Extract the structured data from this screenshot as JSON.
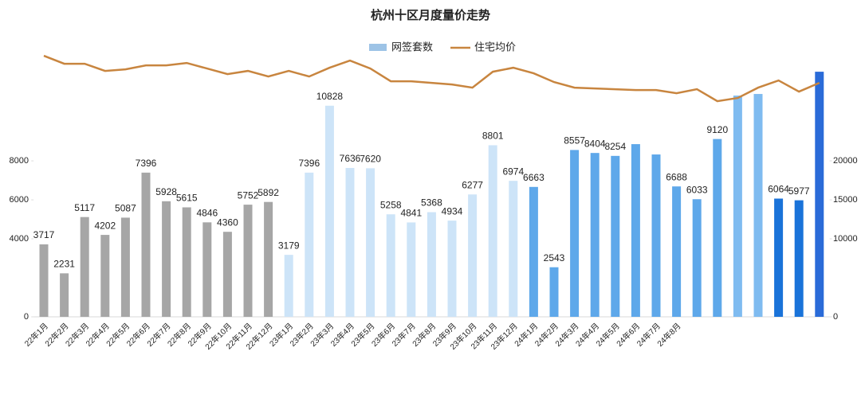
{
  "chart_data": {
    "type": "bar-line",
    "title": "杭州十区月度量价走势",
    "categories": [
      "22年1月",
      "22年2月",
      "22年3月",
      "22年4月",
      "22年5月",
      "22年6月",
      "22年7月",
      "22年8月",
      "22年9月",
      "22年10月",
      "22年11月",
      "22年12月",
      "23年1月",
      "23年2月",
      "23年3月",
      "23年4月",
      "23年5月",
      "23年6月",
      "23年7月",
      "23年8月",
      "23年9月",
      "23年10月",
      "23年11月",
      "23年12月",
      "24年1月",
      "24年2月",
      "24年3月",
      "24年4月",
      "24年5月",
      "24年6月",
      "24年7月",
      "24年8月",
      null,
      null,
      null,
      null,
      null,
      null,
      null
    ],
    "series": [
      {
        "name": "网签套数",
        "type": "bar",
        "color": "#9dc3e6",
        "colors": [
          "#a6a6a6",
          "#a6a6a6",
          "#a6a6a6",
          "#a6a6a6",
          "#a6a6a6",
          "#a6a6a6",
          "#a6a6a6",
          "#a6a6a6",
          "#a6a6a6",
          "#a6a6a6",
          "#a6a6a6",
          "#a6a6a6",
          "#cde4f8",
          "#cde4f8",
          "#cde4f8",
          "#cde4f8",
          "#cde4f8",
          "#cde4f8",
          "#cde4f8",
          "#cde4f8",
          "#cde4f8",
          "#cde4f8",
          "#cde4f8",
          "#cde4f8",
          "#5ea8ea",
          "#5ea8ea",
          "#5ea8ea",
          "#5ea8ea",
          "#5ea8ea",
          "#5ea8ea",
          "#5ea8ea",
          "#5ea8ea",
          "#5ea8ea",
          "#5ea8ea",
          "#7fbbf0",
          "#7fbbf0",
          "#1a73d9",
          "#1a73d9",
          "#2a6bd8"
        ],
        "values": [
          3717,
          2231,
          5117,
          4202,
          5087,
          7396,
          5928,
          5615,
          4846,
          4360,
          5752,
          5892,
          3179,
          7396,
          10828,
          7636,
          7620,
          5258,
          4841,
          5368,
          4934,
          6277,
          8801,
          6974,
          6663,
          2543,
          8557,
          8404,
          8254,
          8857,
          8327,
          6688,
          6033,
          9120,
          11347,
          11430,
          6064,
          5977,
          12571
        ],
        "value_labels": [
          "3717",
          "2231",
          "5117",
          "4202",
          "5087",
          "7396",
          "5928",
          "5615",
          "4846",
          "4360",
          "5752",
          "5892",
          "3179",
          "7396",
          "10828",
          "7636",
          "7620",
          "5258",
          "4841",
          "5368",
          "4934",
          "6277",
          "8801",
          "6974",
          "6663",
          "2543",
          "8557",
          "8404",
          "8254",
          null,
          null,
          "6688",
          "6033",
          "9120",
          null,
          null,
          "6064",
          "5977",
          null
        ]
      },
      {
        "name": "住宅均价",
        "type": "line",
        "color": "#c8853f",
        "axis": "y2",
        "values": [
          33469,
          32449,
          32449,
          31531,
          31735,
          32245,
          32245,
          32551,
          31837,
          31122,
          31531,
          30816,
          31531,
          30816,
          31939,
          32857,
          31837,
          30204,
          30204,
          30000,
          29796,
          29388,
          31429,
          31939,
          31224,
          30102,
          29388,
          29286,
          29184,
          29082,
          29082,
          28673,
          29184,
          27653,
          28061,
          29388,
          30306,
          28878,
          30000
        ]
      }
    ],
    "ylim": [
      0,
      13800
    ],
    "yticks": [
      0,
      4000,
      6000,
      8000
    ],
    "y2lim": [
      0,
      34500
    ],
    "y2ticks": [
      0,
      10000,
      15000,
      20000
    ],
    "legend": "top"
  }
}
